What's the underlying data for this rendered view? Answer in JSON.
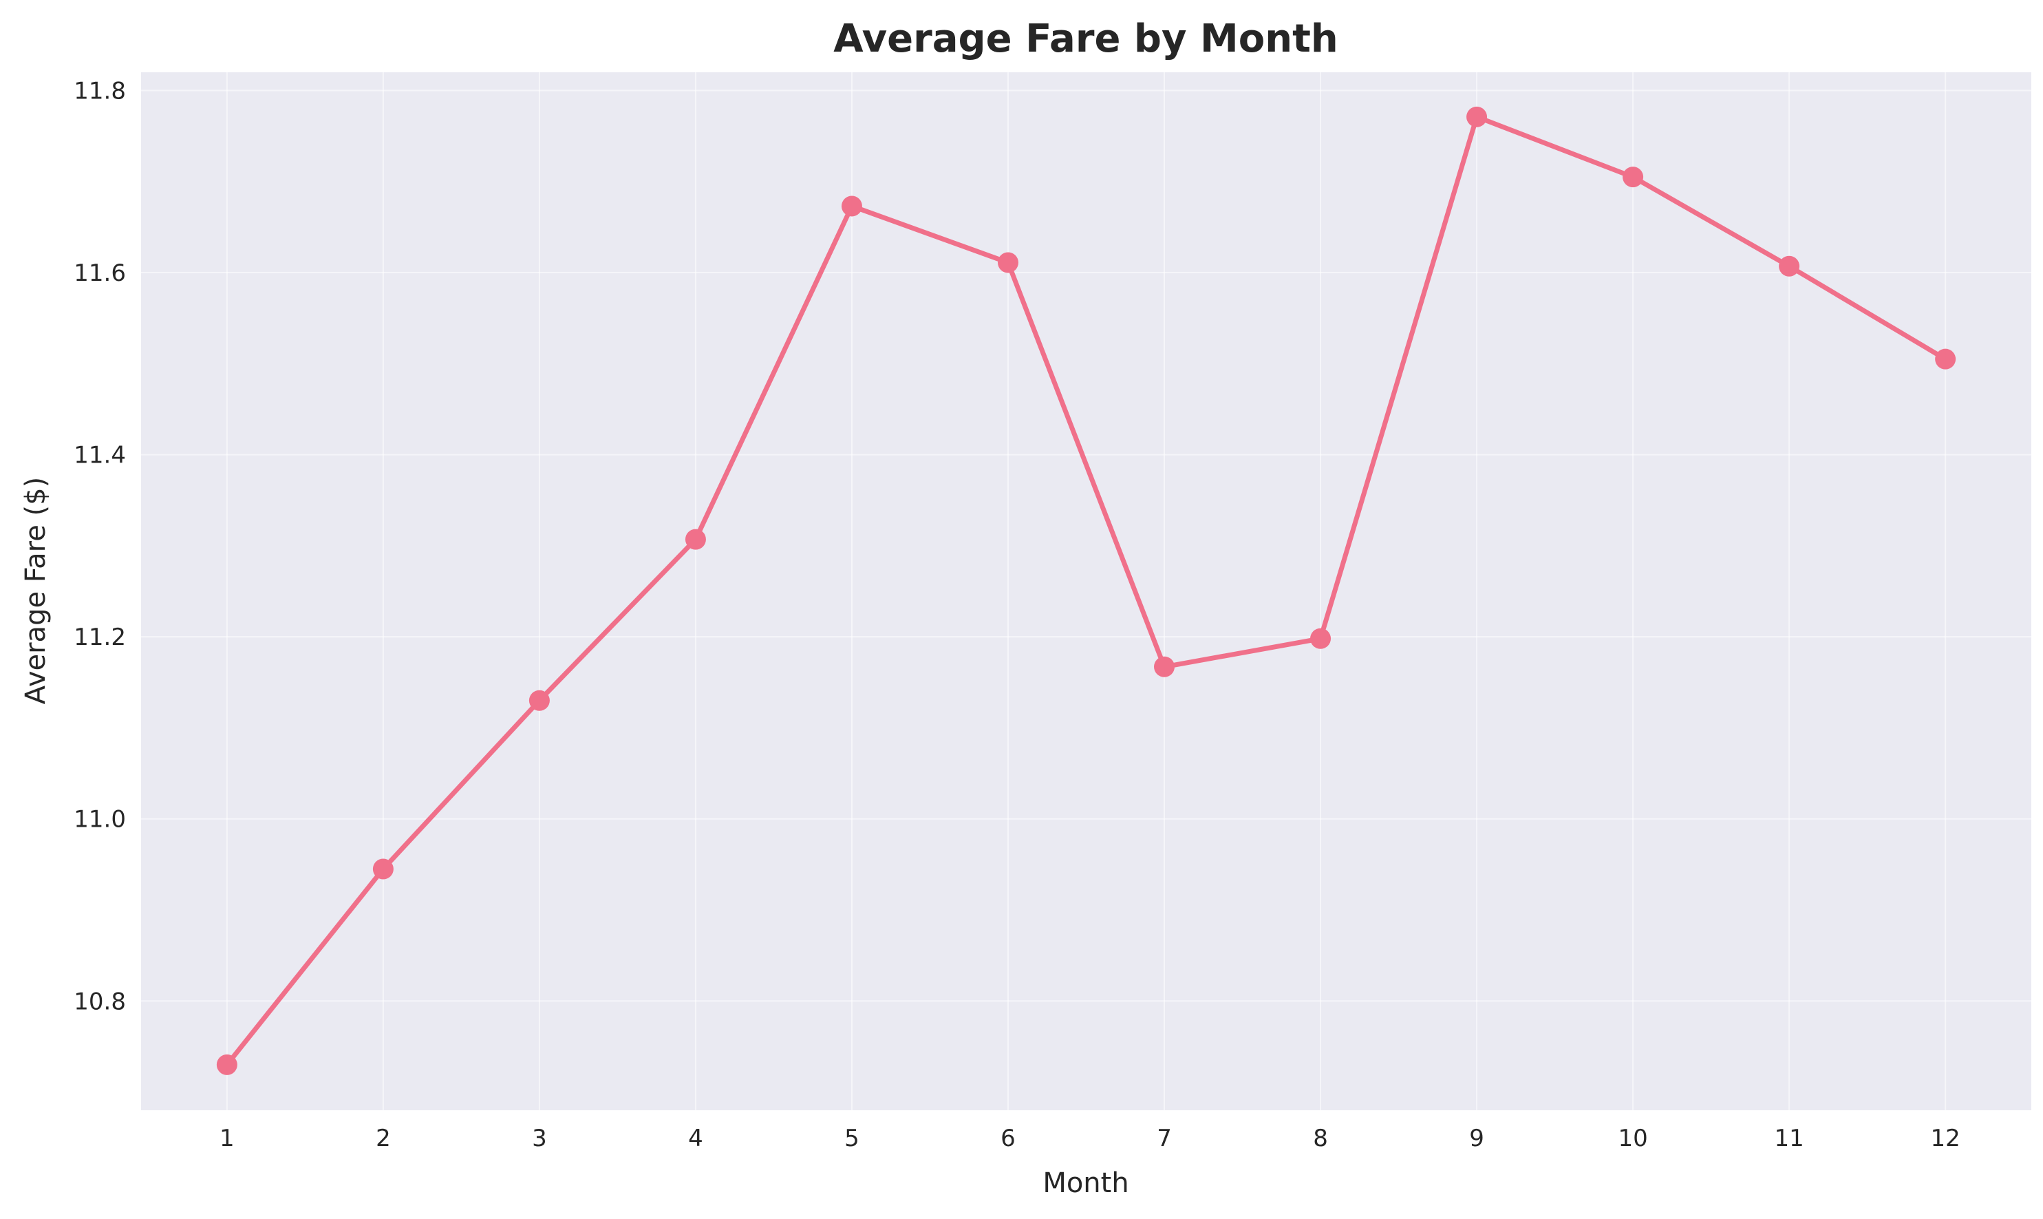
{
  "chart_data": {
    "type": "line",
    "title": "Average Fare by Month",
    "xlabel": "Month",
    "ylabel": "Average Fare ($)",
    "x": [
      1,
      2,
      3,
      4,
      5,
      6,
      7,
      8,
      9,
      10,
      11,
      12
    ],
    "xlim": [
      0.45,
      12.55
    ],
    "ylim": [
      10.68,
      11.82
    ],
    "y_ticks": [
      10.8,
      11.0,
      11.2,
      11.4,
      11.6,
      11.8
    ],
    "y_tick_labels": [
      "10.8",
      "11.0",
      "11.2",
      "11.4",
      "11.6",
      "11.8"
    ],
    "x_tick_labels": [
      "1",
      "2",
      "3",
      "4",
      "5",
      "6",
      "7",
      "8",
      "9",
      "10",
      "11",
      "12"
    ],
    "grid": true,
    "series": [
      {
        "values": [
          10.73,
          10.945,
          11.13,
          11.307,
          11.673,
          11.611,
          11.167,
          11.198,
          11.771,
          11.705,
          11.607,
          11.505
        ],
        "color": "#f0708a"
      }
    ],
    "plot_background": "#eaeaf2"
  }
}
